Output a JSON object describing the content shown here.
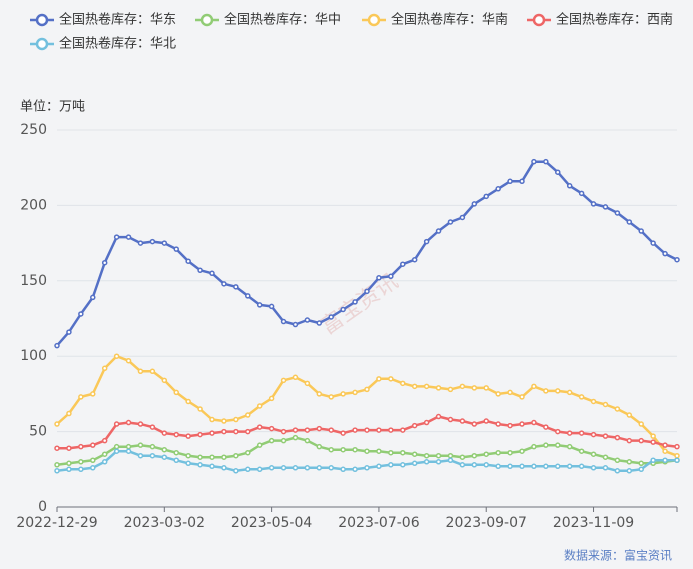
{
  "chart_data": {
    "type": "line",
    "unit_label": "单位：万吨",
    "source": "数据来源：富宝资讯",
    "watermark": "富宝资讯",
    "categories": [
      "2022-12-29",
      null,
      null,
      null,
      null,
      null,
      null,
      null,
      null,
      "2023-03-02",
      null,
      null,
      null,
      null,
      null,
      null,
      null,
      null,
      "2023-05-04",
      null,
      null,
      null,
      null,
      null,
      null,
      null,
      null,
      "2023-07-06",
      null,
      null,
      null,
      null,
      null,
      null,
      null,
      null,
      "2023-09-07",
      null,
      null,
      null,
      null,
      null,
      null,
      null,
      null,
      "2023-11-09",
      null,
      null,
      null,
      null,
      null,
      null,
      null
    ],
    "ylim": [
      0,
      250
    ],
    "yticks": [
      0,
      50,
      100,
      150,
      200,
      250
    ],
    "grid": true,
    "series": [
      {
        "name": "全国热卷库存：华东",
        "color": "#5470c6",
        "values": [
          107,
          116,
          128,
          139,
          162,
          179,
          179,
          175,
          176,
          175,
          171,
          163,
          157,
          155,
          148,
          146,
          140,
          134,
          133,
          123,
          121,
          124,
          122,
          126,
          131,
          136,
          143,
          152,
          153,
          161,
          164,
          176,
          183,
          189,
          192,
          201,
          206,
          211,
          216,
          216,
          229,
          229,
          222,
          213,
          208,
          201,
          199,
          195,
          189,
          183,
          175,
          168,
          164
        ]
      },
      {
        "name": "全国热卷库存：华中",
        "color": "#91cc75",
        "values": [
          28,
          29,
          30,
          31,
          35,
          40,
          40,
          41,
          40,
          38,
          36,
          34,
          33,
          33,
          33,
          34,
          36,
          41,
          44,
          44,
          46,
          44,
          40,
          38,
          38,
          38,
          37,
          37,
          36,
          36,
          35,
          34,
          34,
          34,
          33,
          34,
          35,
          36,
          36,
          37,
          40,
          41,
          41,
          40,
          37,
          35,
          33,
          31,
          30,
          29,
          29,
          30,
          31
        ]
      },
      {
        "name": "全国热卷库存：华南",
        "color": "#fac858",
        "values": [
          55,
          62,
          73,
          75,
          92,
          100,
          97,
          90,
          90,
          84,
          76,
          70,
          65,
          58,
          57,
          58,
          61,
          67,
          72,
          84,
          86,
          82,
          75,
          73,
          75,
          76,
          78,
          85,
          85,
          82,
          80,
          80,
          79,
          78,
          80,
          79,
          79,
          75,
          76,
          73,
          80,
          77,
          77,
          76,
          73,
          70,
          68,
          65,
          61,
          55,
          47,
          37,
          34
        ]
      },
      {
        "name": "全国热卷库存：西南",
        "color": "#ee6666",
        "values": [
          39,
          39,
          40,
          41,
          44,
          55,
          56,
          55,
          53,
          49,
          48,
          47,
          48,
          49,
          50,
          50,
          50,
          53,
          52,
          50,
          51,
          51,
          52,
          51,
          49,
          51,
          51,
          51,
          51,
          51,
          54,
          56,
          60,
          58,
          57,
          55,
          57,
          55,
          54,
          55,
          56,
          53,
          50,
          49,
          49,
          48,
          47,
          46,
          44,
          44,
          43,
          41,
          40
        ]
      },
      {
        "name": "全国热卷库存：华北",
        "color": "#73c0de",
        "values": [
          24,
          25,
          25,
          26,
          30,
          37,
          37,
          34,
          34,
          33,
          31,
          29,
          28,
          27,
          26,
          24,
          25,
          25,
          26,
          26,
          26,
          26,
          26,
          26,
          25,
          25,
          26,
          27,
          28,
          28,
          29,
          30,
          30,
          31,
          28,
          28,
          28,
          27,
          27,
          27,
          27,
          27,
          27,
          27,
          27,
          26,
          26,
          24,
          24,
          25,
          31,
          31,
          31
        ]
      }
    ]
  }
}
